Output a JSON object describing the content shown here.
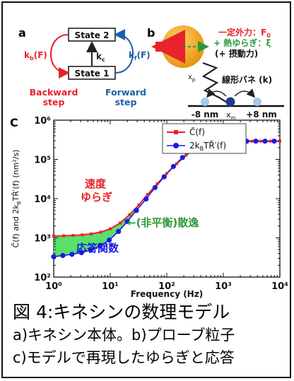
{
  "panel_a": {
    "letter": "a",
    "state_top": "State 2",
    "state_bottom": "State 1",
    "kb": "k",
    "kb_sub": "b",
    "kb_arg": "(F)",
    "kc": "k",
    "kc_sub": "c",
    "kf": "k",
    "kf_sub": "f",
    "kf_arg": "(F)",
    "backward_line1": "Backward",
    "backward_line2": "step",
    "forward_line1": "Forward",
    "forward_line2": "step",
    "colors": {
      "backward": "#e8232a",
      "forward": "#1d5fa8",
      "neutral": "#222222"
    }
  },
  "panel_b": {
    "letter": "b",
    "force_line1": "一定外力：F",
    "force_line1_sub": "0",
    "force_line2": "+ 熱ゆらぎ：ξ",
    "force_line3": "(+ 摂動力)",
    "xp": "x",
    "xp_sub": "p",
    "spring": "線形バネ (k)",
    "minus": "-8 nm",
    "xm": "x",
    "xm_sub": "m",
    "plus": "+8 nm",
    "colors": {
      "force": "#e8232a",
      "thermal": "#2a9a3a",
      "bead": "#f2a61c",
      "site": "#1d3d8f",
      "site_light": "#a8c8e8"
    }
  },
  "chart": {
    "letter": "C",
    "ylabel": "C̃(f) and 2k",
    "ylabel_b": "B",
    "ylabel_rest": "TR̃′(f) (nm²/s)",
    "xlabel": "Frequency (Hz)",
    "legend_red": "C̃(f)",
    "legend_blue_a": "2k",
    "legend_blue_sub": "B",
    "legend_blue_b": "TR̃′(f)",
    "annot_fluct_1": "速度",
    "annot_fluct_2": "ゆらぎ",
    "annot_dissip": "←(非平衡)散逸",
    "annot_response": "応答関数",
    "colors": {
      "red": "#e8232a",
      "blue": "#1a1ae0",
      "green_fill": "#58e06a",
      "green_text": "#2a9a3a",
      "fluct_text": "#e8232a",
      "response_text": "#1a1ae0"
    }
  },
  "chart_data": {
    "type": "line",
    "x_scale": "log",
    "y_scale": "log",
    "xlim": [
      1,
      10000
    ],
    "ylim": [
      100,
      1000000
    ],
    "xlabel": "Frequency (Hz)",
    "ylabel": "C̃(f) and 2k_BTR̃′(f) (nm²/s)",
    "grid": false,
    "legend_position": "top-right",
    "x_ticks": [
      "10⁰",
      "10¹",
      "10²",
      "10³",
      "10⁴"
    ],
    "y_ticks": [
      "10²",
      "10³",
      "10⁴",
      "10⁵",
      "10⁶"
    ],
    "series": [
      {
        "name": "C̃(f)",
        "color": "#e8232a",
        "x": [
          1.0,
          1.5,
          2.2,
          3.2,
          4.6,
          6.8,
          10,
          15,
          22,
          32,
          46,
          68,
          100,
          150,
          220,
          320,
          460,
          680,
          1000,
          1500,
          2200,
          3200,
          4600,
          6800,
          10000
        ],
        "y": [
          1120,
          1130,
          1150,
          1190,
          1260,
          1400,
          1700,
          2400,
          3900,
          6900,
          12800,
          24000,
          44000,
          78000,
          128000,
          186000,
          236000,
          268000,
          284000,
          289000,
          291000,
          292000,
          292000,
          292000,
          292000
        ]
      },
      {
        "name": "2k_BTR̃′(f)",
        "color": "#1a1ae0",
        "x": [
          1.0,
          1.45,
          2.1,
          3.1,
          4.5,
          6.6,
          9.6,
          14,
          20,
          29,
          43,
          62,
          90,
          131,
          190,
          276,
          401,
          582,
          846,
          1230,
          1780,
          2590,
          3760,
          5460,
          7940
        ],
        "y": [
          330,
          355,
          380,
          420,
          490,
          620,
          880,
          1460,
          2620,
          5000,
          9800,
          19200,
          36000,
          66000,
          112000,
          170000,
          222000,
          258000,
          276000,
          285000,
          289000,
          291000,
          292000,
          292000,
          292000
        ]
      }
    ]
  },
  "caption": {
    "line1": "図 4:キネシンの数理モデル",
    "line2": "a)キネシン本体。b)プローブ粒子",
    "line3": "c)モデルで再現したゆらぎと応答"
  }
}
